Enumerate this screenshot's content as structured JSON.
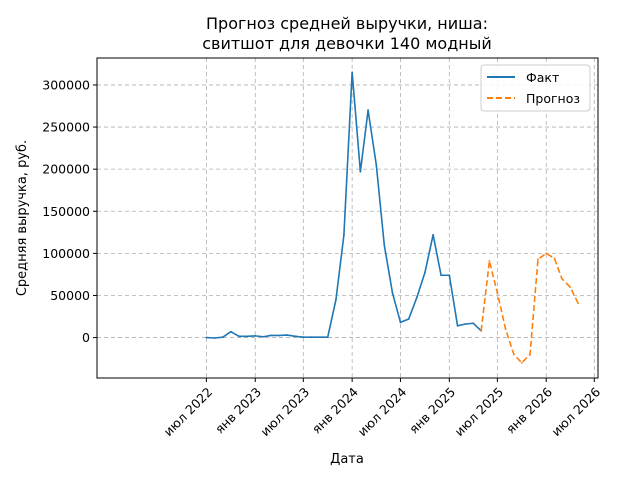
{
  "chart_data": {
    "type": "line",
    "title": [
      "Прогноз средней выручки, ниша:",
      "свитшот для девочки 140 модный"
    ],
    "xlabel": "Дата",
    "ylabel": "Средняя выручка, руб.",
    "xlim": [
      "2021-05-15",
      "2026-07-15"
    ],
    "ylim": [
      -48000,
      332000
    ],
    "grid": true,
    "legend_position": "top-right",
    "x_ticks": [
      {
        "date": "2022-07-01",
        "label": "июл 2022"
      },
      {
        "date": "2023-01-01",
        "label": "янв 2023"
      },
      {
        "date": "2023-07-01",
        "label": "июл 2023"
      },
      {
        "date": "2024-01-01",
        "label": "янв 2024"
      },
      {
        "date": "2024-07-01",
        "label": "июл 2024"
      },
      {
        "date": "2025-01-01",
        "label": "янв 2025"
      },
      {
        "date": "2025-07-01",
        "label": "июл 2025"
      },
      {
        "date": "2026-01-01",
        "label": "янв 2026"
      },
      {
        "date": "2026-07-01",
        "label": "июл 2026"
      }
    ],
    "y_ticks": [
      {
        "value": 0,
        "label": "0"
      },
      {
        "value": 50000,
        "label": "50000"
      },
      {
        "value": 100000,
        "label": "100000"
      },
      {
        "value": 150000,
        "label": "150000"
      },
      {
        "value": 200000,
        "label": "200000"
      },
      {
        "value": 250000,
        "label": "250000"
      },
      {
        "value": 300000,
        "label": "300000"
      }
    ],
    "series": [
      {
        "name": "Факт",
        "color": "#1f77b4",
        "style": "solid",
        "points": [
          {
            "x": "2022-07-01",
            "y": 0
          },
          {
            "x": "2022-08-01",
            "y": -500
          },
          {
            "x": "2022-09-01",
            "y": 500
          },
          {
            "x": "2022-10-01",
            "y": 7000
          },
          {
            "x": "2022-11-01",
            "y": 1500
          },
          {
            "x": "2022-12-01",
            "y": 1500
          },
          {
            "x": "2023-01-01",
            "y": 2000
          },
          {
            "x": "2023-02-01",
            "y": 1000
          },
          {
            "x": "2023-03-01",
            "y": 2500
          },
          {
            "x": "2023-04-01",
            "y": 2500
          },
          {
            "x": "2023-05-01",
            "y": 3000
          },
          {
            "x": "2023-06-01",
            "y": 1500
          },
          {
            "x": "2023-07-01",
            "y": 500
          },
          {
            "x": "2023-08-01",
            "y": 500
          },
          {
            "x": "2023-09-01",
            "y": 500
          },
          {
            "x": "2023-10-01",
            "y": 500
          },
          {
            "x": "2023-11-01",
            "y": 45000
          },
          {
            "x": "2023-12-01",
            "y": 122000
          },
          {
            "x": "2024-01-01",
            "y": 315000
          },
          {
            "x": "2024-02-01",
            "y": 197000
          },
          {
            "x": "2024-03-01",
            "y": 270000
          },
          {
            "x": "2024-04-01",
            "y": 205000
          },
          {
            "x": "2024-05-01",
            "y": 110000
          },
          {
            "x": "2024-06-01",
            "y": 53000
          },
          {
            "x": "2024-07-01",
            "y": 18000
          },
          {
            "x": "2024-08-01",
            "y": 22000
          },
          {
            "x": "2024-09-01",
            "y": 48000
          },
          {
            "x": "2024-10-01",
            "y": 77000
          },
          {
            "x": "2024-11-01",
            "y": 122000
          },
          {
            "x": "2024-12-01",
            "y": 74000
          },
          {
            "x": "2025-01-01",
            "y": 74000
          },
          {
            "x": "2025-02-01",
            "y": 14000
          },
          {
            "x": "2025-03-01",
            "y": 16000
          },
          {
            "x": "2025-04-01",
            "y": 17000
          },
          {
            "x": "2025-05-01",
            "y": 8000
          }
        ]
      },
      {
        "name": "Прогноз",
        "color": "#ff7f0e",
        "style": "dashed",
        "points": [
          {
            "x": "2025-05-01",
            "y": 8000
          },
          {
            "x": "2025-06-01",
            "y": 91000
          },
          {
            "x": "2025-07-01",
            "y": 53000
          },
          {
            "x": "2025-08-01",
            "y": 10000
          },
          {
            "x": "2025-09-01",
            "y": -20000
          },
          {
            "x": "2025-10-01",
            "y": -30000
          },
          {
            "x": "2025-11-01",
            "y": -20000
          },
          {
            "x": "2025-12-01",
            "y": 93000
          },
          {
            "x": "2026-01-01",
            "y": 100000
          },
          {
            "x": "2026-02-01",
            "y": 94000
          },
          {
            "x": "2026-03-01",
            "y": 70000
          },
          {
            "x": "2026-04-01",
            "y": 60000
          },
          {
            "x": "2026-05-01",
            "y": 41000
          }
        ]
      }
    ]
  }
}
